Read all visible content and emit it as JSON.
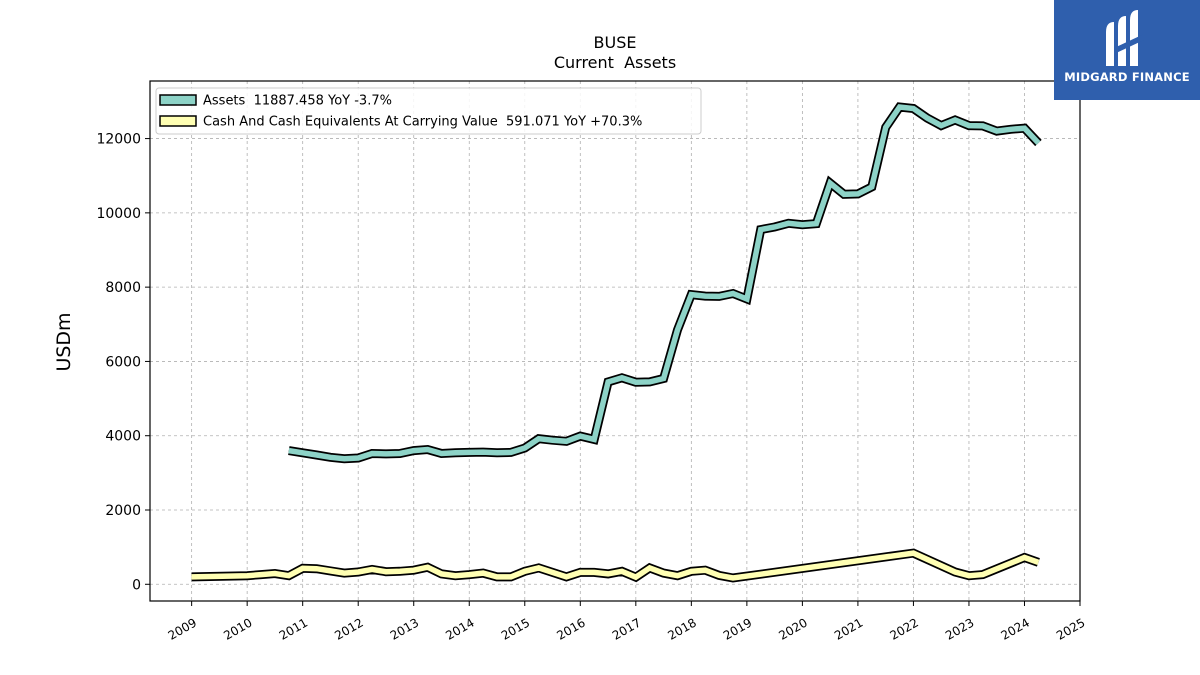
{
  "logo": {
    "brand": "MIDGARD FINANCE",
    "icon": "midgard-finance-logo-icon",
    "background": "#2f5fad"
  },
  "chart_data": {
    "type": "line",
    "title": "BUSE",
    "subtitle": "Current  Assets",
    "xlabel": "",
    "ylabel": "USDm",
    "xlim": [
      2008.25,
      2025.0
    ],
    "ylim": [
      -450,
      13550
    ],
    "grid": true,
    "legend_position": "top-left",
    "x_ticks": [
      "2009",
      "2010",
      "2011",
      "2012",
      "2013",
      "2014",
      "2015",
      "2016",
      "2017",
      "2018",
      "2019",
      "2020",
      "2021",
      "2022",
      "2023",
      "2024",
      "2025"
    ],
    "y_ticks": [
      0,
      2000,
      4000,
      6000,
      8000,
      10000,
      12000
    ],
    "series": [
      {
        "name": "Assets  11887.458 YoY -3.7%",
        "color": "#8dd3c7",
        "x": [
          2010.75,
          2011.0,
          2011.25,
          2011.5,
          2011.75,
          2012.0,
          2012.25,
          2012.5,
          2012.75,
          2013.0,
          2013.25,
          2013.5,
          2013.75,
          2014.0,
          2014.25,
          2014.5,
          2014.75,
          2015.0,
          2015.25,
          2015.5,
          2015.75,
          2016.0,
          2016.25,
          2016.5,
          2016.75,
          2017.0,
          2017.25,
          2017.5,
          2017.75,
          2018.0,
          2018.25,
          2018.5,
          2018.75,
          2019.0,
          2019.25,
          2019.5,
          2019.75,
          2020.0,
          2020.25,
          2020.5,
          2020.75,
          2021.0,
          2021.25,
          2021.5,
          2021.75,
          2022.0,
          2022.25,
          2022.5,
          2022.75,
          2023.0,
          2023.25,
          2023.5,
          2023.75,
          2024.0,
          2024.25
        ],
        "values": [
          3600,
          3540,
          3480,
          3420,
          3380,
          3400,
          3520,
          3510,
          3520,
          3600,
          3630,
          3520,
          3540,
          3550,
          3560,
          3540,
          3550,
          3670,
          3920,
          3880,
          3850,
          3990,
          3900,
          5450,
          5560,
          5440,
          5450,
          5540,
          6850,
          7800,
          7760,
          7750,
          7830,
          7680,
          9550,
          9620,
          9720,
          9680,
          9710,
          10800,
          10500,
          10510,
          10700,
          12300,
          12850,
          12810,
          12550,
          12350,
          12500,
          12350,
          12340,
          12200,
          12250,
          12280,
          11880
        ]
      },
      {
        "name": "Cash And Cash Equivalents At Carrying Value  591.071 YoY +70.3%",
        "color": "#ffffb3",
        "x": [
          2009.0,
          2010.0,
          2010.25,
          2010.5,
          2010.75,
          2011.0,
          2011.25,
          2011.5,
          2011.75,
          2012.0,
          2012.25,
          2012.5,
          2012.75,
          2013.0,
          2013.25,
          2013.5,
          2013.75,
          2014.0,
          2014.25,
          2014.5,
          2014.75,
          2015.0,
          2015.25,
          2015.5,
          2015.75,
          2016.0,
          2016.25,
          2016.5,
          2016.75,
          2017.0,
          2017.25,
          2017.5,
          2017.75,
          2018.0,
          2018.25,
          2018.5,
          2018.75,
          2022.0,
          2022.75,
          2023.0,
          2023.25,
          2024.0,
          2024.25
        ],
        "values": [
          200,
          230,
          260,
          290,
          230,
          430,
          420,
          360,
          300,
          330,
          400,
          340,
          350,
          380,
          460,
          280,
          230,
          260,
          300,
          200,
          200,
          350,
          440,
          320,
          200,
          320,
          320,
          280,
          350,
          190,
          440,
          300,
          230,
          350,
          380,
          240,
          170,
          840,
          330,
          230,
          260,
          720,
          590
        ]
      }
    ]
  }
}
